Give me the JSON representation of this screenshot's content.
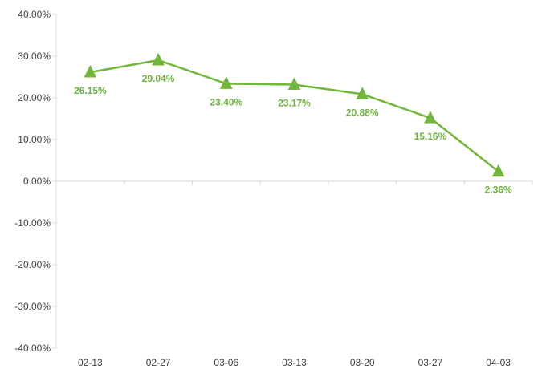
{
  "chart_data": {
    "type": "line",
    "categories": [
      "02-13",
      "02-27",
      "03-06",
      "03-13",
      "03-20",
      "03-27",
      "04-03"
    ],
    "series": [
      {
        "values": [
          26.15,
          29.04,
          23.4,
          23.17,
          20.88,
          15.16,
          2.36
        ],
        "data_labels": [
          "26.15%",
          "29.04%",
          "23.40%",
          "23.17%",
          "20.88%",
          "15.16%",
          "2.36%"
        ],
        "color": "#70b73b",
        "label_color": "#6cb33f",
        "marker": "triangle"
      }
    ],
    "ylim": [
      -40,
      40
    ],
    "yticks": [
      40,
      30,
      20,
      10,
      0,
      -10,
      -20,
      -30,
      -40
    ],
    "ytick_labels": [
      "40.00%",
      "30.00%",
      "20.00%",
      "10.00%",
      "0.00%",
      "-10.00%",
      "-20.00%",
      "-30.00%",
      "-40.00%"
    ],
    "title": "",
    "xlabel": "",
    "ylabel": "",
    "grid": false,
    "legend": "none",
    "axis_color": "#d9d9d9"
  }
}
